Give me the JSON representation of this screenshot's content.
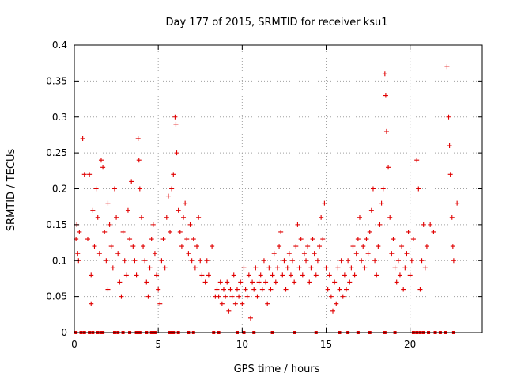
{
  "chart_data": {
    "type": "scatter",
    "title": "Day 177 of 2015, SRMTID for receiver ksu1",
    "xlabel": "GPS time / hours",
    "ylabel": "SRMTID / TECUs",
    "xlim": [
      0,
      24.3
    ],
    "ylim": [
      0,
      0.4
    ],
    "x_ticks": [
      0,
      5,
      10,
      15,
      20
    ],
    "x_tick_labels": [
      "0",
      "5",
      "10",
      "15",
      "20"
    ],
    "y_ticks": [
      0,
      0.05,
      0.1,
      0.15,
      0.2,
      0.25,
      0.3,
      0.35,
      0.4
    ],
    "y_tick_labels": [
      "0",
      "0.05",
      "0.1",
      "0.15",
      "0.2",
      "0.25",
      "0.3",
      "0.35",
      "0.4"
    ],
    "grid": true,
    "marker": "plus",
    "color": "#e00000",
    "series": [
      {
        "name": "SRMTID",
        "points": [
          [
            0.1,
            0.13
          ],
          [
            0.15,
            0.15
          ],
          [
            0.2,
            0.11
          ],
          [
            0.25,
            0.1
          ],
          [
            0.3,
            0.14
          ],
          [
            0.5,
            0.27
          ],
          [
            0.6,
            0.22
          ],
          [
            0.8,
            0.13
          ],
          [
            0.9,
            0.22
          ],
          [
            1.0,
            0.04
          ],
          [
            1.0,
            0.08
          ],
          [
            1.1,
            0.17
          ],
          [
            1.2,
            0.12
          ],
          [
            1.3,
            0.2
          ],
          [
            1.4,
            0.16
          ],
          [
            1.5,
            0.11
          ],
          [
            1.6,
            0.24
          ],
          [
            1.7,
            0.23
          ],
          [
            1.8,
            0.14
          ],
          [
            1.9,
            0.1
          ],
          [
            2.0,
            0.06
          ],
          [
            2.0,
            0.18
          ],
          [
            2.1,
            0.15
          ],
          [
            2.2,
            0.12
          ],
          [
            2.3,
            0.09
          ],
          [
            2.4,
            0.2
          ],
          [
            2.5,
            0.16
          ],
          [
            2.6,
            0.11
          ],
          [
            2.7,
            0.07
          ],
          [
            2.8,
            0.05
          ],
          [
            2.9,
            0.14
          ],
          [
            3.0,
            0.1
          ],
          [
            3.1,
            0.08
          ],
          [
            3.2,
            0.17
          ],
          [
            3.3,
            0.13
          ],
          [
            3.4,
            0.21
          ],
          [
            3.5,
            0.12
          ],
          [
            3.6,
            0.1
          ],
          [
            3.7,
            0.08
          ],
          [
            3.8,
            0.27
          ],
          [
            3.85,
            0.24
          ],
          [
            3.9,
            0.2
          ],
          [
            4.0,
            0.16
          ],
          [
            4.1,
            0.12
          ],
          [
            4.2,
            0.1
          ],
          [
            4.3,
            0.07
          ],
          [
            4.4,
            0.05
          ],
          [
            4.5,
            0.09
          ],
          [
            4.6,
            0.13
          ],
          [
            4.7,
            0.15
          ],
          [
            4.8,
            0.11
          ],
          [
            4.9,
            0.08
          ],
          [
            5.0,
            0.06
          ],
          [
            5.1,
            0.04
          ],
          [
            5.2,
            0.1
          ],
          [
            5.3,
            0.13
          ],
          [
            5.4,
            0.09
          ],
          [
            5.5,
            0.16
          ],
          [
            5.6,
            0.19
          ],
          [
            5.7,
            0.14
          ],
          [
            5.8,
            0.2
          ],
          [
            5.9,
            0.22
          ],
          [
            6.0,
            0.3
          ],
          [
            6.05,
            0.29
          ],
          [
            6.1,
            0.25
          ],
          [
            6.2,
            0.17
          ],
          [
            6.3,
            0.14
          ],
          [
            6.4,
            0.12
          ],
          [
            6.5,
            0.16
          ],
          [
            6.6,
            0.18
          ],
          [
            6.7,
            0.13
          ],
          [
            6.8,
            0.11
          ],
          [
            6.9,
            0.15
          ],
          [
            7.0,
            0.1
          ],
          [
            7.1,
            0.13
          ],
          [
            7.2,
            0.09
          ],
          [
            7.3,
            0.12
          ],
          [
            7.4,
            0.16
          ],
          [
            7.5,
            0.1
          ],
          [
            7.6,
            0.08
          ],
          [
            7.8,
            0.07
          ],
          [
            7.9,
            0.1
          ],
          [
            8.0,
            0.08
          ],
          [
            8.2,
            0.12
          ],
          [
            8.4,
            0.05
          ],
          [
            8.5,
            0.06
          ],
          [
            8.6,
            0.05
          ],
          [
            8.7,
            0.07
          ],
          [
            8.8,
            0.04
          ],
          [
            8.9,
            0.06
          ],
          [
            9.0,
            0.05
          ],
          [
            9.1,
            0.07
          ],
          [
            9.2,
            0.03
          ],
          [
            9.3,
            0.06
          ],
          [
            9.4,
            0.05
          ],
          [
            9.5,
            0.08
          ],
          [
            9.6,
            0.04
          ],
          [
            9.7,
            0.06
          ],
          [
            9.8,
            0.05
          ],
          [
            9.9,
            0.07
          ],
          [
            10.0,
            0.04
          ],
          [
            10.1,
            0.09
          ],
          [
            10.2,
            0.06
          ],
          [
            10.3,
            0.05
          ],
          [
            10.4,
            0.08
          ],
          [
            10.5,
            0.02
          ],
          [
            10.6,
            0.07
          ],
          [
            10.7,
            0.06
          ],
          [
            10.8,
            0.09
          ],
          [
            10.9,
            0.05
          ],
          [
            11.0,
            0.07
          ],
          [
            11.1,
            0.08
          ],
          [
            11.2,
            0.06
          ],
          [
            11.3,
            0.1
          ],
          [
            11.4,
            0.07
          ],
          [
            11.5,
            0.04
          ],
          [
            11.6,
            0.09
          ],
          [
            11.7,
            0.06
          ],
          [
            11.8,
            0.08
          ],
          [
            11.9,
            0.11
          ],
          [
            12.0,
            0.07
          ],
          [
            12.1,
            0.09
          ],
          [
            12.2,
            0.12
          ],
          [
            12.3,
            0.14
          ],
          [
            12.4,
            0.08
          ],
          [
            12.5,
            0.1
          ],
          [
            12.6,
            0.06
          ],
          [
            12.7,
            0.09
          ],
          [
            12.8,
            0.11
          ],
          [
            12.9,
            0.08
          ],
          [
            13.0,
            0.1
          ],
          [
            13.1,
            0.07
          ],
          [
            13.2,
            0.12
          ],
          [
            13.3,
            0.15
          ],
          [
            13.4,
            0.09
          ],
          [
            13.5,
            0.13
          ],
          [
            13.6,
            0.08
          ],
          [
            13.7,
            0.11
          ],
          [
            13.8,
            0.1
          ],
          [
            13.9,
            0.12
          ],
          [
            14.0,
            0.07
          ],
          [
            14.1,
            0.09
          ],
          [
            14.2,
            0.13
          ],
          [
            14.3,
            0.11
          ],
          [
            14.4,
            0.08
          ],
          [
            14.5,
            0.1
          ],
          [
            14.6,
            0.12
          ],
          [
            14.7,
            0.16
          ],
          [
            14.8,
            0.13
          ],
          [
            14.9,
            0.18
          ],
          [
            15.0,
            0.09
          ],
          [
            15.1,
            0.06
          ],
          [
            15.2,
            0.08
          ],
          [
            15.3,
            0.05
          ],
          [
            15.4,
            0.03
          ],
          [
            15.5,
            0.07
          ],
          [
            15.6,
            0.04
          ],
          [
            15.7,
            0.09
          ],
          [
            15.8,
            0.06
          ],
          [
            15.9,
            0.1
          ],
          [
            16.0,
            0.05
          ],
          [
            16.1,
            0.08
          ],
          [
            16.2,
            0.06
          ],
          [
            16.3,
            0.1
          ],
          [
            16.4,
            0.07
          ],
          [
            16.5,
            0.09
          ],
          [
            16.6,
            0.12
          ],
          [
            16.7,
            0.08
          ],
          [
            16.8,
            0.11
          ],
          [
            16.9,
            0.13
          ],
          [
            17.0,
            0.16
          ],
          [
            17.1,
            0.1
          ],
          [
            17.2,
            0.12
          ],
          [
            17.3,
            0.09
          ],
          [
            17.4,
            0.13
          ],
          [
            17.5,
            0.11
          ],
          [
            17.6,
            0.14
          ],
          [
            17.7,
            0.17
          ],
          [
            17.8,
            0.2
          ],
          [
            17.9,
            0.1
          ],
          [
            18.0,
            0.08
          ],
          [
            18.1,
            0.12
          ],
          [
            18.2,
            0.15
          ],
          [
            18.3,
            0.18
          ],
          [
            18.4,
            0.2
          ],
          [
            18.5,
            0.36
          ],
          [
            18.55,
            0.33
          ],
          [
            18.6,
            0.28
          ],
          [
            18.7,
            0.23
          ],
          [
            18.8,
            0.16
          ],
          [
            18.9,
            0.11
          ],
          [
            19.0,
            0.13
          ],
          [
            19.1,
            0.09
          ],
          [
            19.2,
            0.07
          ],
          [
            19.3,
            0.1
          ],
          [
            19.4,
            0.08
          ],
          [
            19.5,
            0.12
          ],
          [
            19.6,
            0.06
          ],
          [
            19.7,
            0.09
          ],
          [
            19.8,
            0.11
          ],
          [
            19.9,
            0.14
          ],
          [
            20.0,
            0.08
          ],
          [
            20.1,
            0.1
          ],
          [
            20.2,
            0.13
          ],
          [
            20.4,
            0.24
          ],
          [
            20.5,
            0.2
          ],
          [
            20.6,
            0.06
          ],
          [
            20.7,
            0.1
          ],
          [
            20.8,
            0.15
          ],
          [
            20.9,
            0.09
          ],
          [
            21.0,
            0.12
          ],
          [
            21.2,
            0.15
          ],
          [
            21.4,
            0.14
          ],
          [
            22.2,
            0.37
          ],
          [
            22.3,
            0.3
          ],
          [
            22.35,
            0.26
          ],
          [
            22.4,
            0.22
          ],
          [
            22.5,
            0.16
          ],
          [
            22.55,
            0.12
          ],
          [
            22.6,
            0.1
          ],
          [
            22.8,
            0.18
          ]
        ]
      }
    ],
    "zero_points_x": [
      0.1,
      0.4,
      0.6,
      0.9,
      1.1,
      1.4,
      1.6,
      1.7,
      2.4,
      2.6,
      2.9,
      3.3,
      3.7,
      3.9,
      4.3,
      4.6,
      4.8,
      5.7,
      5.9,
      6.2,
      6.8,
      7.1,
      8.3,
      8.6,
      9.7,
      10.1,
      10.7,
      11.8,
      13.1,
      14.4,
      15.8,
      16.3,
      16.9,
      17.6,
      18.5,
      19.1,
      20.2,
      20.4,
      20.6,
      20.8,
      21.1,
      21.5,
      21.8,
      22.1,
      22.6
    ]
  }
}
